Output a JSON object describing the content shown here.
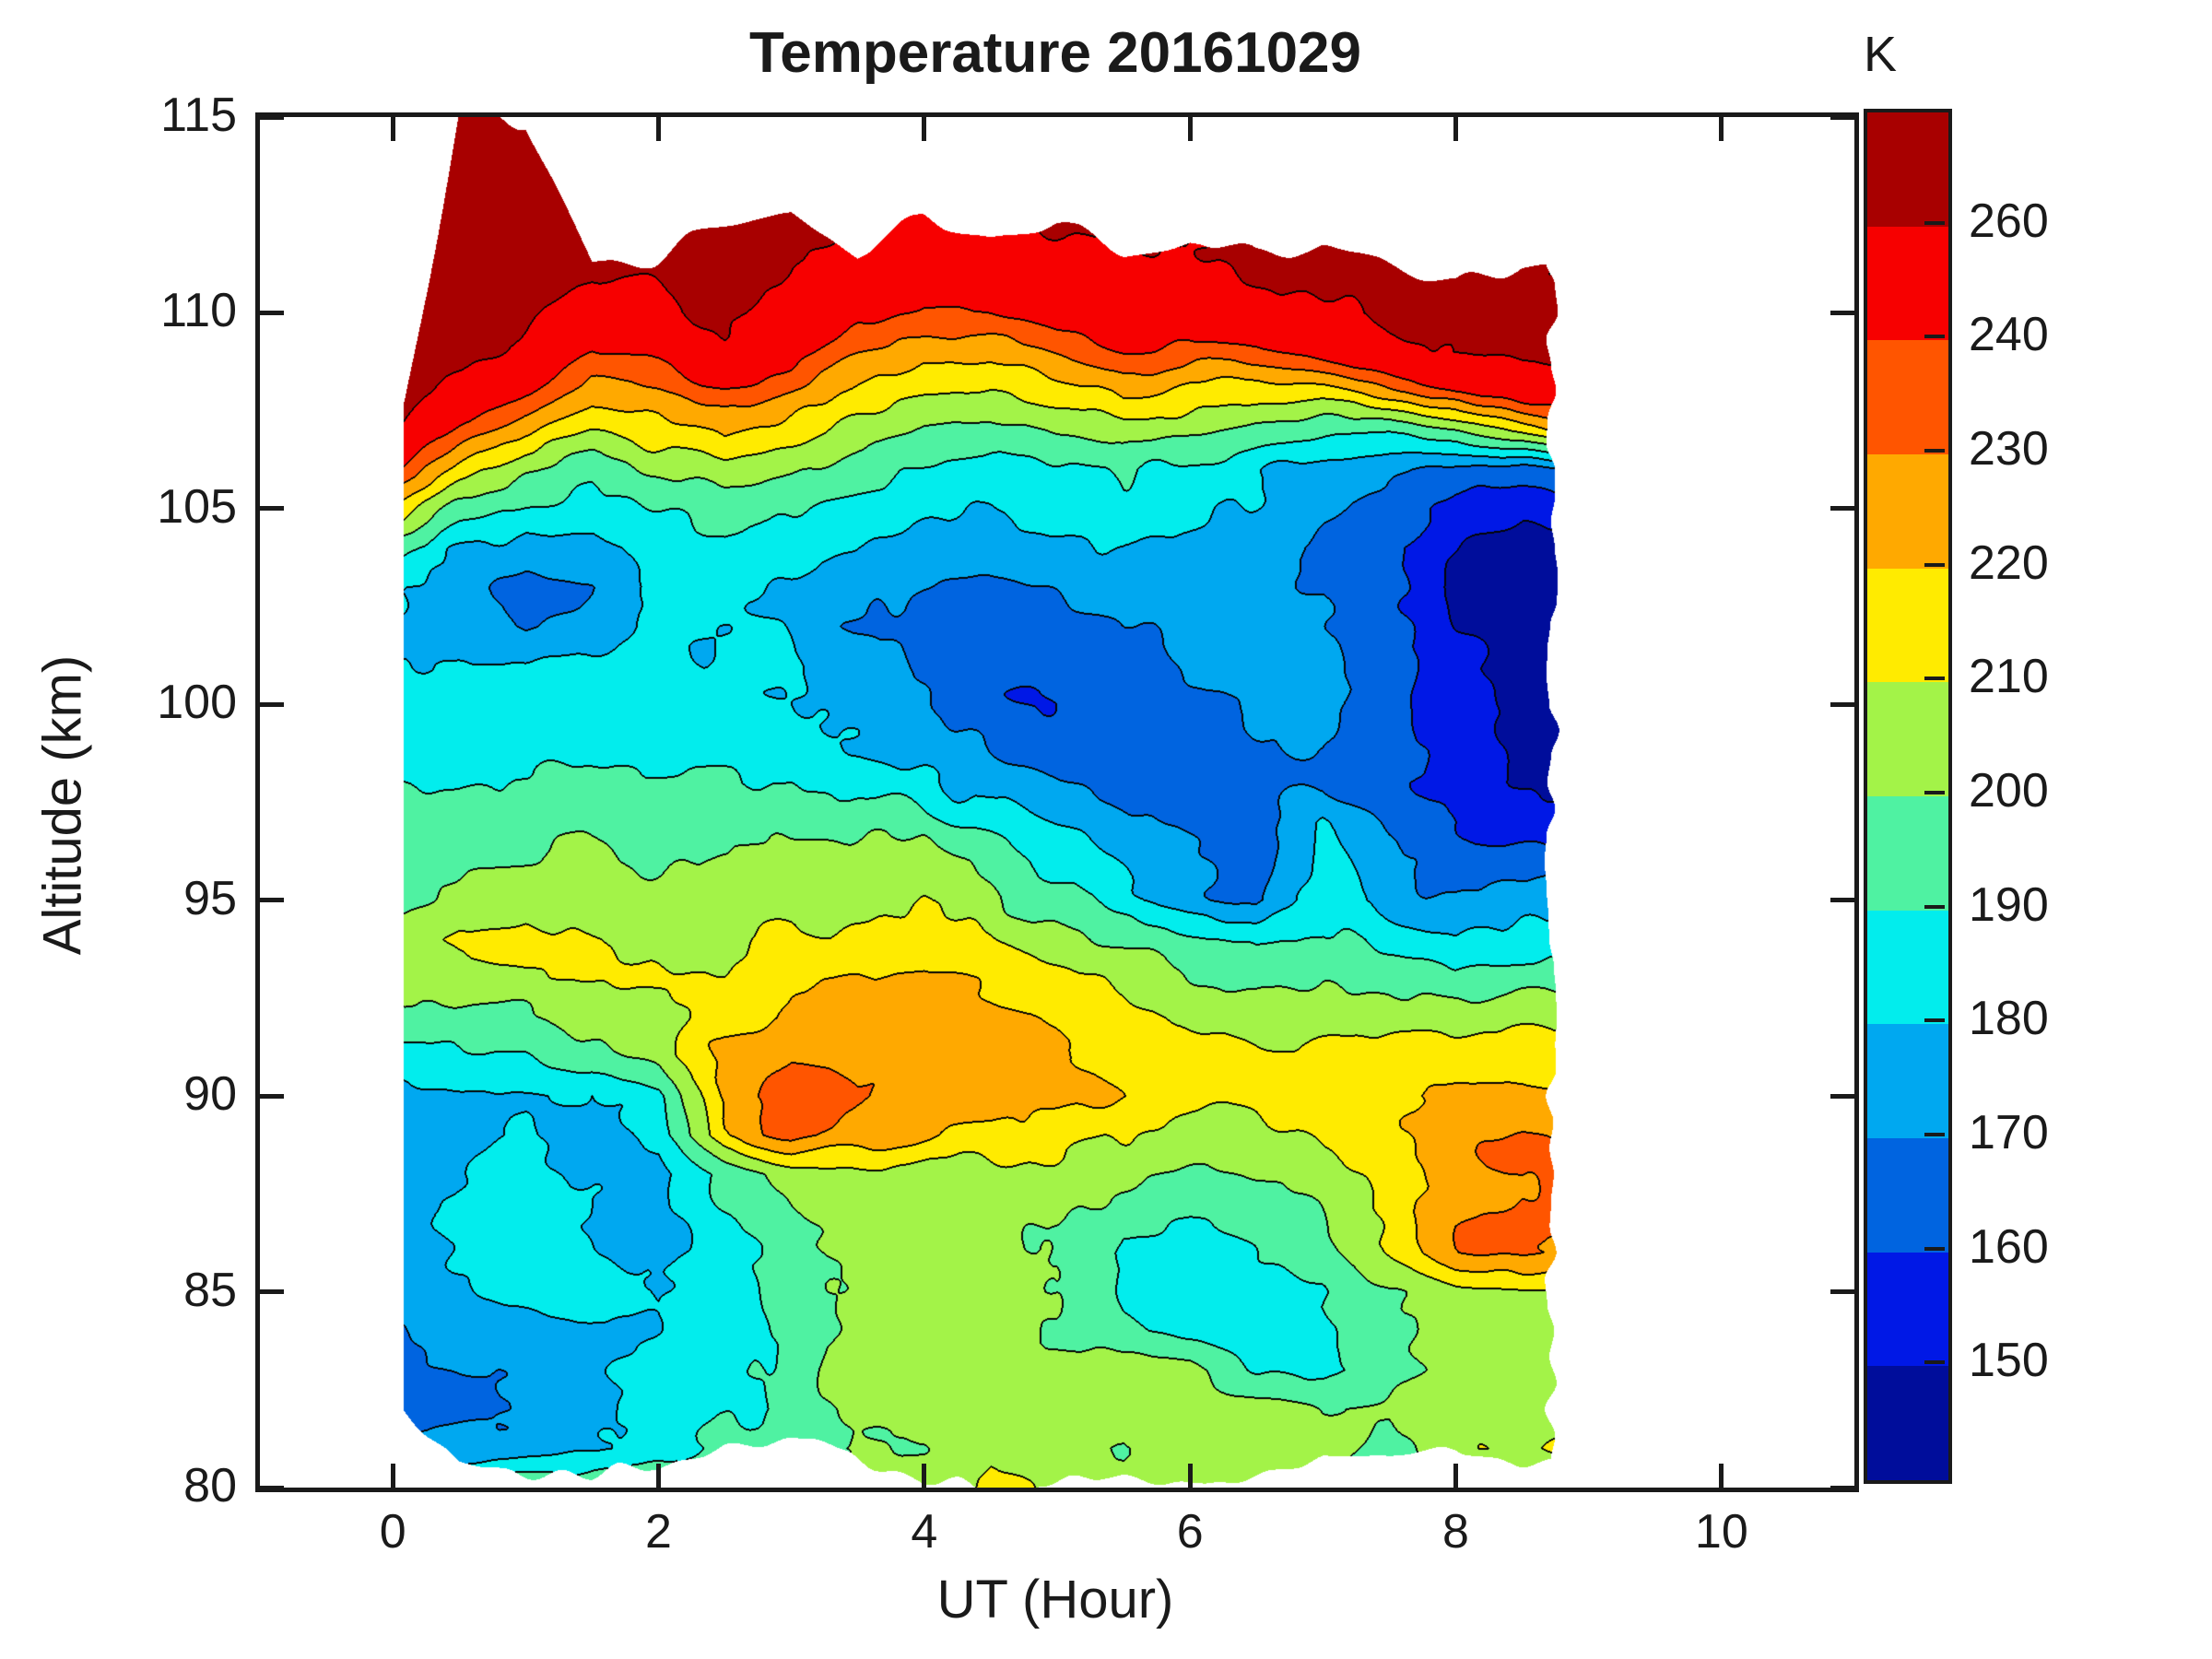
{
  "figure": {
    "title": "Temperature 20161029",
    "x_label": "UT (Hour)",
    "y_label": "Altitude (km)",
    "colorbar_unit": "K"
  },
  "axes": {
    "x_tick_labels": [
      "0",
      "2",
      "4",
      "6",
      "8",
      "10"
    ],
    "x_tick_values": [
      0,
      2,
      4,
      6,
      8,
      10
    ],
    "x_range": [
      -1,
      11
    ],
    "y_tick_labels": [
      "80",
      "85",
      "90",
      "95",
      "100",
      "105",
      "110",
      "115"
    ],
    "y_tick_values": [
      80,
      85,
      90,
      95,
      100,
      105,
      110,
      115
    ],
    "y_range": [
      80,
      115
    ]
  },
  "colorbar": {
    "unit": "K",
    "tick_labels": [
      "150",
      "160",
      "170",
      "180",
      "190",
      "200",
      "210",
      "220",
      "230",
      "240",
      "260"
    ],
    "tick_values": [
      150,
      160,
      170,
      180,
      190,
      200,
      210,
      220,
      230,
      240,
      260
    ],
    "n_cells": 12,
    "cell_colors_bottom_to_top": [
      "#000D9B",
      "#0018E6",
      "#0064E0",
      "#00A8F0",
      "#02EDED",
      "#4FF2A2",
      "#A3F348",
      "#FFEB00",
      "#FFA900",
      "#FF5500",
      "#F70000",
      "#A80000"
    ]
  },
  "chart_data": {
    "type": "heatmap",
    "subtype": "filled-contour",
    "title": "Temperature 20161029",
    "xlabel": "UT (Hour)",
    "ylabel": "Altitude (km)",
    "units": "K",
    "xlim": [
      -1,
      11
    ],
    "ylim": [
      80,
      115
    ],
    "levels": [
      150,
      160,
      170,
      180,
      190,
      200,
      210,
      220,
      230,
      240,
      260
    ],
    "palette": [
      "#000D9B",
      "#0018E6",
      "#0064E0",
      "#00A8F0",
      "#02EDED",
      "#4FF2A2",
      "#A3F348",
      "#FFEB00",
      "#FFA900",
      "#FF5500",
      "#F70000",
      "#A80000"
    ],
    "x_hours": [
      0,
      0.5,
      1,
      1.5,
      2,
      2.5,
      3,
      3.5,
      4,
      4.5,
      5,
      5.5,
      6,
      6.5,
      7,
      7.5,
      8,
      8.5,
      9
    ],
    "y_alt_km": [
      80,
      81,
      82,
      83,
      84,
      85,
      86,
      87,
      88,
      89,
      90,
      91,
      92,
      93,
      94,
      95,
      96,
      97,
      98,
      99,
      100,
      101,
      102,
      103,
      104,
      105,
      106,
      107,
      108,
      109,
      110,
      111,
      112,
      113,
      114,
      115
    ],
    "hour_extent": [
      0.08,
      8.72
    ],
    "top_edge_km": [
      106,
      115,
      115,
      111.4,
      111.6,
      112.1,
      112.5,
      111.5,
      112.4,
      112.0,
      112.3,
      111.7,
      112.0,
      111.4,
      111.8,
      111.2,
      110.8,
      111.5,
      111.3
    ],
    "bottom_edge_km": [
      82.3,
      80.7,
      80.4,
      80.4,
      80.5,
      81.1,
      81.2,
      80.8,
      80.2,
      80.05,
      80.05,
      80.3,
      80.05,
      80.4,
      80.7,
      80.6,
      80.9,
      80.7,
      80.8
    ],
    "values_K": [
      [
        196,
        196,
        196,
        197,
        198,
        199,
        200,
        202,
        205,
        212,
        206,
        203,
        208,
        204,
        199,
        197,
        198,
        199,
        199
      ],
      [
        166,
        170,
        175,
        180,
        185,
        191,
        198,
        204,
        203,
        209,
        206,
        201,
        209,
        204,
        205,
        196,
        206,
        212,
        214
      ],
      [
        163,
        168,
        172,
        178,
        183,
        188,
        194,
        201,
        205,
        208,
        204,
        205,
        207,
        203,
        200,
        203,
        207,
        210,
        211
      ],
      [
        168,
        172,
        175,
        180,
        184,
        187,
        196,
        202,
        206,
        207,
        204,
        206,
        205,
        188,
        184,
        196,
        205,
        208,
        209
      ],
      [
        170,
        173,
        176,
        180,
        183,
        186,
        196,
        203,
        206,
        205,
        202,
        191,
        186,
        184,
        186,
        198,
        206,
        207,
        208
      ],
      [
        171,
        176,
        183,
        183,
        180,
        185,
        197,
        204,
        206,
        204,
        200,
        188,
        185,
        185,
        188,
        200,
        207,
        208,
        208
      ],
      [
        172,
        180,
        184,
        182,
        178,
        186,
        198,
        205,
        207,
        205,
        201,
        190,
        188,
        190,
        195,
        208,
        226,
        234,
        232
      ],
      [
        173,
        182,
        185,
        181,
        177,
        188,
        200,
        208,
        206,
        204,
        202,
        196,
        194,
        196,
        200,
        212,
        228,
        236,
        234
      ],
      [
        174,
        180,
        183,
        179,
        176,
        192,
        204,
        207,
        205,
        206,
        205,
        203,
        200,
        203,
        207,
        214,
        226,
        232,
        230
      ],
      [
        174,
        176,
        178,
        175,
        186,
        220,
        234,
        226,
        222,
        218,
        212,
        208,
        206,
        208,
        212,
        216,
        224,
        229,
        225
      ],
      [
        176,
        178,
        180,
        177,
        190,
        226,
        237,
        228,
        226,
        224,
        221,
        218,
        214,
        215,
        216,
        219,
        222,
        225,
        222
      ],
      [
        186,
        188,
        190,
        196,
        204,
        222,
        230,
        227,
        226,
        225,
        223,
        219,
        215,
        214,
        213,
        214,
        215,
        217,
        216
      ],
      [
        196,
        198,
        200,
        205,
        208,
        215,
        220,
        222,
        223,
        222,
        219,
        214,
        209,
        206,
        206,
        206,
        205,
        207,
        206
      ],
      [
        202,
        206,
        210,
        212,
        214,
        213,
        216,
        218,
        219,
        217,
        212,
        206,
        200,
        197,
        198,
        197,
        194,
        196,
        197
      ],
      [
        204,
        211,
        213,
        210,
        209,
        209,
        211,
        212,
        213,
        210,
        204,
        197,
        192,
        189,
        191,
        188,
        183,
        186,
        187
      ],
      [
        197,
        202,
        205,
        203,
        204,
        205,
        206,
        206,
        207,
        202,
        192,
        182,
        174,
        167,
        184,
        176,
        171,
        174,
        177
      ],
      [
        197,
        199,
        201,
        200,
        200,
        201,
        201,
        202,
        203,
        196,
        186,
        177,
        170,
        165,
        184,
        172,
        166,
        164,
        165
      ],
      [
        193,
        194,
        196,
        196,
        196,
        196,
        197,
        196,
        193,
        186,
        178,
        172,
        167,
        163,
        182,
        168,
        162,
        157,
        156
      ],
      [
        189,
        189,
        190,
        191,
        191,
        190,
        190,
        188,
        183,
        176,
        170,
        166,
        163,
        165,
        170,
        164,
        156,
        151,
        150
      ],
      [
        186,
        186,
        186,
        187,
        187,
        186,
        185,
        182,
        176,
        169,
        164,
        163,
        166,
        169,
        172,
        165,
        154,
        148,
        147
      ],
      [
        183,
        184,
        184,
        185,
        186,
        184,
        182,
        177,
        170,
        164,
        162,
        165,
        169,
        172,
        174,
        166,
        152,
        146,
        145
      ],
      [
        181,
        182,
        180,
        183,
        185,
        183,
        180,
        174,
        167,
        162,
        164,
        168,
        172,
        175,
        174,
        164,
        151,
        145,
        144
      ],
      [
        179,
        176,
        169,
        172,
        181,
        182,
        179,
        172,
        165,
        163,
        167,
        172,
        175,
        176,
        172,
        162,
        151,
        145,
        144
      ],
      [
        181,
        174,
        165,
        169,
        179,
        183,
        180,
        174,
        168,
        166,
        170,
        175,
        177,
        176,
        170,
        160,
        150,
        145,
        145
      ],
      [
        192,
        182,
        172,
        174,
        183,
        187,
        184,
        179,
        175,
        173,
        176,
        179,
        178,
        175,
        168,
        159,
        151,
        147,
        148
      ],
      [
        215,
        198,
        186,
        184,
        191,
        197,
        193,
        187,
        182,
        180,
        183,
        186,
        183,
        179,
        173,
        165,
        157,
        153,
        154
      ],
      [
        240,
        215,
        199,
        195,
        201,
        208,
        203,
        195,
        189,
        187,
        190,
        193,
        188,
        183,
        178,
        171,
        165,
        164,
        170
      ],
      [
        258,
        238,
        220,
        211,
        215,
        223,
        216,
        206,
        199,
        197,
        202,
        206,
        200,
        195,
        193,
        192,
        198,
        212,
        228
      ],
      [
        268,
        255,
        240,
        227,
        231,
        239,
        231,
        219,
        212,
        211,
        217,
        222,
        215,
        212,
        215,
        228,
        240,
        250,
        254
      ],
      [
        274,
        266,
        254,
        242,
        246,
        253,
        246,
        233,
        226,
        225,
        233,
        240,
        236,
        235,
        242,
        254,
        261,
        265,
        265
      ],
      [
        278,
        272,
        264,
        254,
        257,
        262,
        256,
        245,
        240,
        241,
        248,
        253,
        251,
        253,
        258,
        263,
        266,
        266,
        265
      ],
      [
        280,
        276,
        270,
        262,
        264,
        266,
        262,
        253,
        250,
        252,
        257,
        259,
        259,
        261,
        263,
        265,
        266,
        258,
        263
      ],
      [
        272,
        270,
        268,
        264,
        265,
        266,
        264,
        258,
        256,
        257,
        260,
        261,
        262,
        263,
        264,
        265,
        266,
        265,
        264
      ],
      [
        274,
        273,
        272,
        268,
        266,
        266,
        265,
        260,
        258,
        259,
        261,
        262,
        262,
        263,
        264,
        265,
        265,
        264,
        263
      ],
      [
        275,
        274,
        273,
        270,
        268,
        267,
        266,
        262,
        260,
        260,
        262,
        262,
        263,
        263,
        264,
        265,
        265,
        264,
        263
      ],
      [
        276,
        275,
        274,
        271,
        269,
        268,
        267,
        263,
        261,
        261,
        262,
        263,
        263,
        264,
        264,
        265,
        265,
        264,
        263
      ]
    ]
  }
}
